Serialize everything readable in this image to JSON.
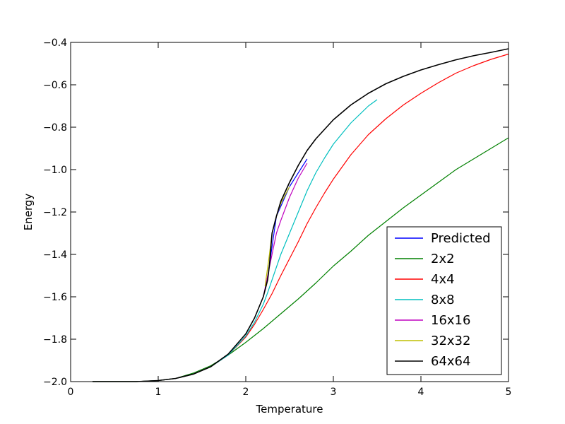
{
  "chart_data": {
    "type": "line",
    "title": "",
    "xlabel": "Temperature",
    "ylabel": "Energy",
    "xlim": [
      0,
      5
    ],
    "ylim": [
      -2.0,
      -0.4
    ],
    "xticks": [
      0,
      1,
      2,
      3,
      4,
      5
    ],
    "xtick_labels": [
      "0",
      "1",
      "2",
      "3",
      "4",
      "5"
    ],
    "yticks": [
      -2.0,
      -1.8,
      -1.6,
      -1.4,
      -1.2,
      -1.0,
      -0.8,
      -0.6,
      -0.4
    ],
    "ytick_labels": [
      "−2.0",
      "−1.8",
      "−1.6",
      "−1.4",
      "−1.2",
      "−1.0",
      "−0.8",
      "−0.6",
      "−0.4"
    ],
    "grid": false,
    "legend_position": "lower-right",
    "series": [
      {
        "name": "Predicted",
        "color": "#0000ff",
        "x": [
          2.26,
          2.35,
          2.5,
          2.7
        ],
        "y": [
          -1.48,
          -1.22,
          -1.08,
          -0.95
        ]
      },
      {
        "name": "2x2",
        "color": "#008000",
        "x": [
          0.25,
          0.5,
          0.75,
          1.0,
          1.2,
          1.4,
          1.6,
          1.8,
          2.0,
          2.2,
          2.4,
          2.6,
          2.8,
          3.0,
          3.2,
          3.4,
          3.6,
          3.8,
          4.0,
          4.2,
          4.4,
          4.6,
          4.8,
          5.0
        ],
        "y": [
          -2.0,
          -2.0,
          -2.0,
          -1.995,
          -1.985,
          -1.96,
          -1.925,
          -1.875,
          -1.815,
          -1.75,
          -1.68,
          -1.61,
          -1.535,
          -1.455,
          -1.385,
          -1.31,
          -1.245,
          -1.18,
          -1.12,
          -1.06,
          -1.0,
          -0.95,
          -0.9,
          -0.85
        ]
      },
      {
        "name": "4x4",
        "color": "#ff0000",
        "x": [
          0.25,
          0.5,
          0.75,
          1.0,
          1.2,
          1.4,
          1.6,
          1.8,
          2.0,
          2.1,
          2.2,
          2.3,
          2.4,
          2.5,
          2.6,
          2.7,
          2.8,
          2.9,
          3.0,
          3.2,
          3.4,
          3.6,
          3.8,
          4.0,
          4.2,
          4.4,
          4.6,
          4.8,
          5.0
        ],
        "y": [
          -2.0,
          -2.0,
          -2.0,
          -1.995,
          -1.985,
          -1.965,
          -1.93,
          -1.875,
          -1.79,
          -1.73,
          -1.66,
          -1.585,
          -1.5,
          -1.42,
          -1.34,
          -1.255,
          -1.18,
          -1.11,
          -1.045,
          -0.93,
          -0.835,
          -0.76,
          -0.695,
          -0.64,
          -0.59,
          -0.545,
          -0.51,
          -0.48,
          -0.455
        ]
      },
      {
        "name": "8x8",
        "color": "#00bfbf",
        "x": [
          0.25,
          0.5,
          0.75,
          1.0,
          1.2,
          1.4,
          1.6,
          1.8,
          2.0,
          2.1,
          2.2,
          2.25,
          2.3,
          2.35,
          2.4,
          2.5,
          2.6,
          2.7,
          2.8,
          2.9,
          3.0,
          3.2,
          3.4,
          3.5
        ],
        "y": [
          -2.0,
          -2.0,
          -2.0,
          -1.995,
          -1.985,
          -1.965,
          -1.93,
          -1.875,
          -1.785,
          -1.72,
          -1.635,
          -1.58,
          -1.52,
          -1.46,
          -1.4,
          -1.3,
          -1.2,
          -1.1,
          -1.015,
          -0.945,
          -0.88,
          -0.78,
          -0.7,
          -0.67
        ]
      },
      {
        "name": "16x16",
        "color": "#bf00bf",
        "x": [
          2.2,
          2.25,
          2.3,
          2.35,
          2.4,
          2.5,
          2.6,
          2.7
        ],
        "y": [
          -1.6,
          -1.5,
          -1.4,
          -1.3,
          -1.24,
          -1.13,
          -1.04,
          -0.97
        ]
      },
      {
        "name": "32x32",
        "color": "#bfbf00",
        "x": [
          2.22,
          2.27,
          2.3,
          2.35,
          2.4,
          2.45,
          2.5
        ],
        "y": [
          -1.55,
          -1.4,
          -1.3,
          -1.22,
          -1.16,
          -1.12,
          -1.08
        ]
      },
      {
        "name": "64x64",
        "color": "#000000",
        "x": [
          0.25,
          0.5,
          0.75,
          1.0,
          1.2,
          1.4,
          1.6,
          1.8,
          2.0,
          2.1,
          2.2,
          2.25,
          2.27,
          2.3,
          2.35,
          2.4,
          2.5,
          2.6,
          2.7,
          2.8,
          3.0,
          3.2,
          3.4,
          3.6,
          3.8,
          4.0,
          4.2,
          4.4,
          4.6,
          4.8,
          5.0
        ],
        "y": [
          -2.0,
          -2.0,
          -2.0,
          -1.995,
          -1.985,
          -1.965,
          -1.93,
          -1.87,
          -1.775,
          -1.7,
          -1.6,
          -1.52,
          -1.45,
          -1.3,
          -1.22,
          -1.15,
          -1.06,
          -0.98,
          -0.91,
          -0.855,
          -0.765,
          -0.695,
          -0.64,
          -0.595,
          -0.56,
          -0.53,
          -0.505,
          -0.482,
          -0.463,
          -0.447,
          -0.43
        ]
      }
    ]
  }
}
